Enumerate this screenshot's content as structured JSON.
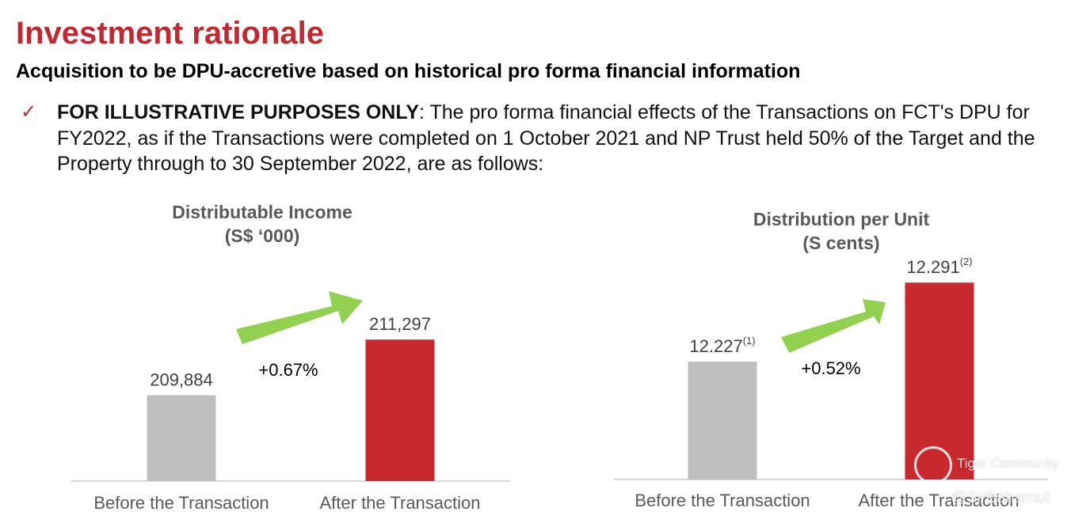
{
  "page": {
    "title": "Investment rationale",
    "subtitle": "Acquisition to be DPU-accretive based on historical pro forma financial information",
    "bullet_marker": "✓",
    "bullet_bold": "FOR ILLUSTRATIVE PURPOSES ONLY",
    "bullet_text": ": The pro forma financial effects of the Transactions on FCT's DPU for FY2022, as if the Transactions were completed on 1 October 2021 and NP Trust held 50% of the Target and the Property through to 30 September 2022, are as follows:"
  },
  "colors": {
    "title_red": "#c0292f",
    "bar_before": "#bfbfbf",
    "bar_after": "#c8292f",
    "arrow": "#92d050",
    "axis": "#d9d9d9"
  },
  "watermark": {
    "brand": "Tiger Community",
    "handle": "@SirBahamut"
  },
  "chart_data": [
    {
      "type": "bar",
      "title": "Distributable Income",
      "subtitle": "(S$ ‘000)",
      "categories": [
        "Before the Transaction",
        "After the Transaction"
      ],
      "values": [
        209884,
        211297
      ],
      "value_labels": [
        "209,884",
        "211,297"
      ],
      "footnote_marks": [
        "",
        ""
      ],
      "change_label": "+0.67%",
      "bar_colors": [
        "#bfbfbf",
        "#c8292f"
      ]
    },
    {
      "type": "bar",
      "title": "Distribution per Unit",
      "subtitle": "(S cents)",
      "categories": [
        "Before the Transaction",
        "After the Transaction"
      ],
      "values": [
        12.227,
        12.291
      ],
      "value_labels": [
        "12.227",
        "12.291"
      ],
      "footnote_marks": [
        "(1)",
        "(2)"
      ],
      "change_label": "+0.52%",
      "bar_colors": [
        "#bfbfbf",
        "#c8292f"
      ]
    }
  ]
}
